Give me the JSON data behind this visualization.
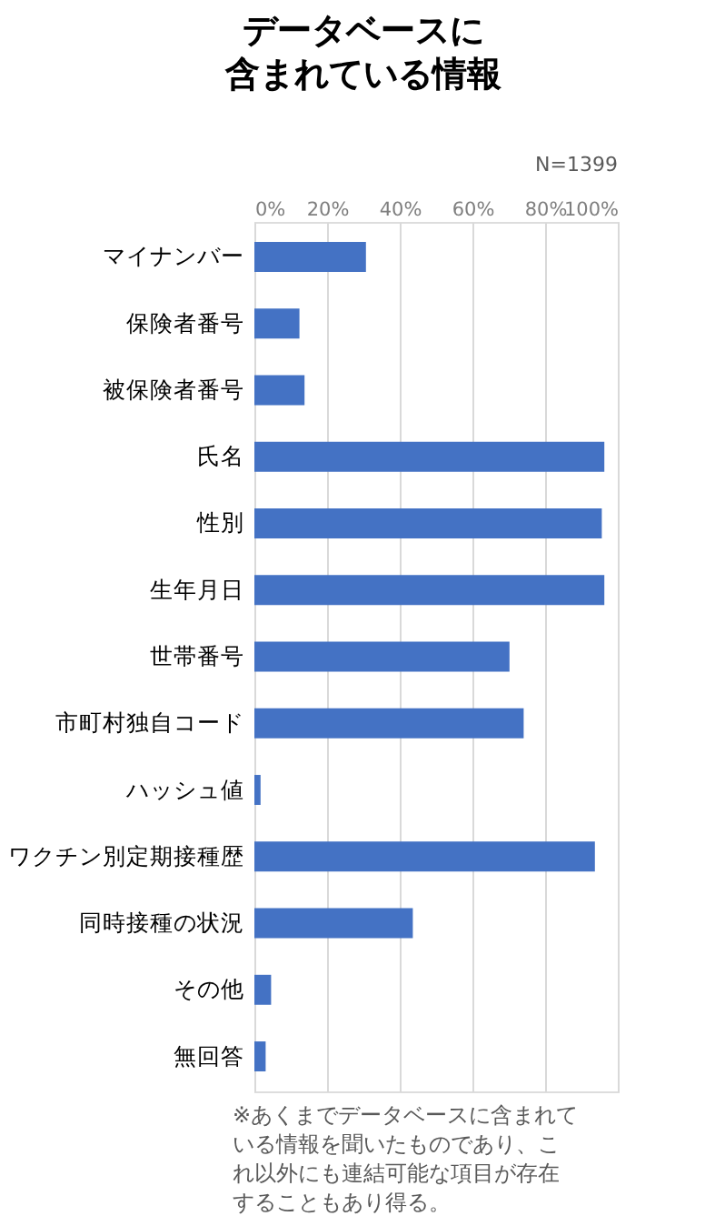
{
  "chart_data": {
    "type": "bar",
    "orientation": "horizontal",
    "title": "データベースに含まれている情報",
    "subtitle": "N=1399",
    "categories": [
      "マイナンバー",
      "保険者番号",
      "被保険者番号",
      "氏名",
      "性別",
      "生年月日",
      "世帯番号",
      "市町村独自コード",
      "ハッシュ値",
      "ワクチン別定期接種歴",
      "同時接種の状況",
      "その他",
      "無回答"
    ],
    "values": [
      30.7,
      12.4,
      13.8,
      96.3,
      95.6,
      96.3,
      70.2,
      74.1,
      1.7,
      93.7,
      43.6,
      4.6,
      3.1
    ],
    "color": "#4472c4",
    "xlim": [
      0,
      100
    ],
    "xticks": [
      {
        "value": 0,
        "label": "0%"
      },
      {
        "value": 20,
        "label": "20%"
      },
      {
        "value": 40,
        "label": "40%"
      },
      {
        "value": 60,
        "label": "60%"
      },
      {
        "value": 80,
        "label": "80%"
      },
      {
        "value": 100,
        "label": "100%"
      }
    ],
    "grid": "x",
    "legend": false,
    "annotations": [
      "※あくまでデータベースに含まれている情報を聞いたものであり、これ以外にも連結可能な項目が存在することもあり得る。"
    ]
  }
}
